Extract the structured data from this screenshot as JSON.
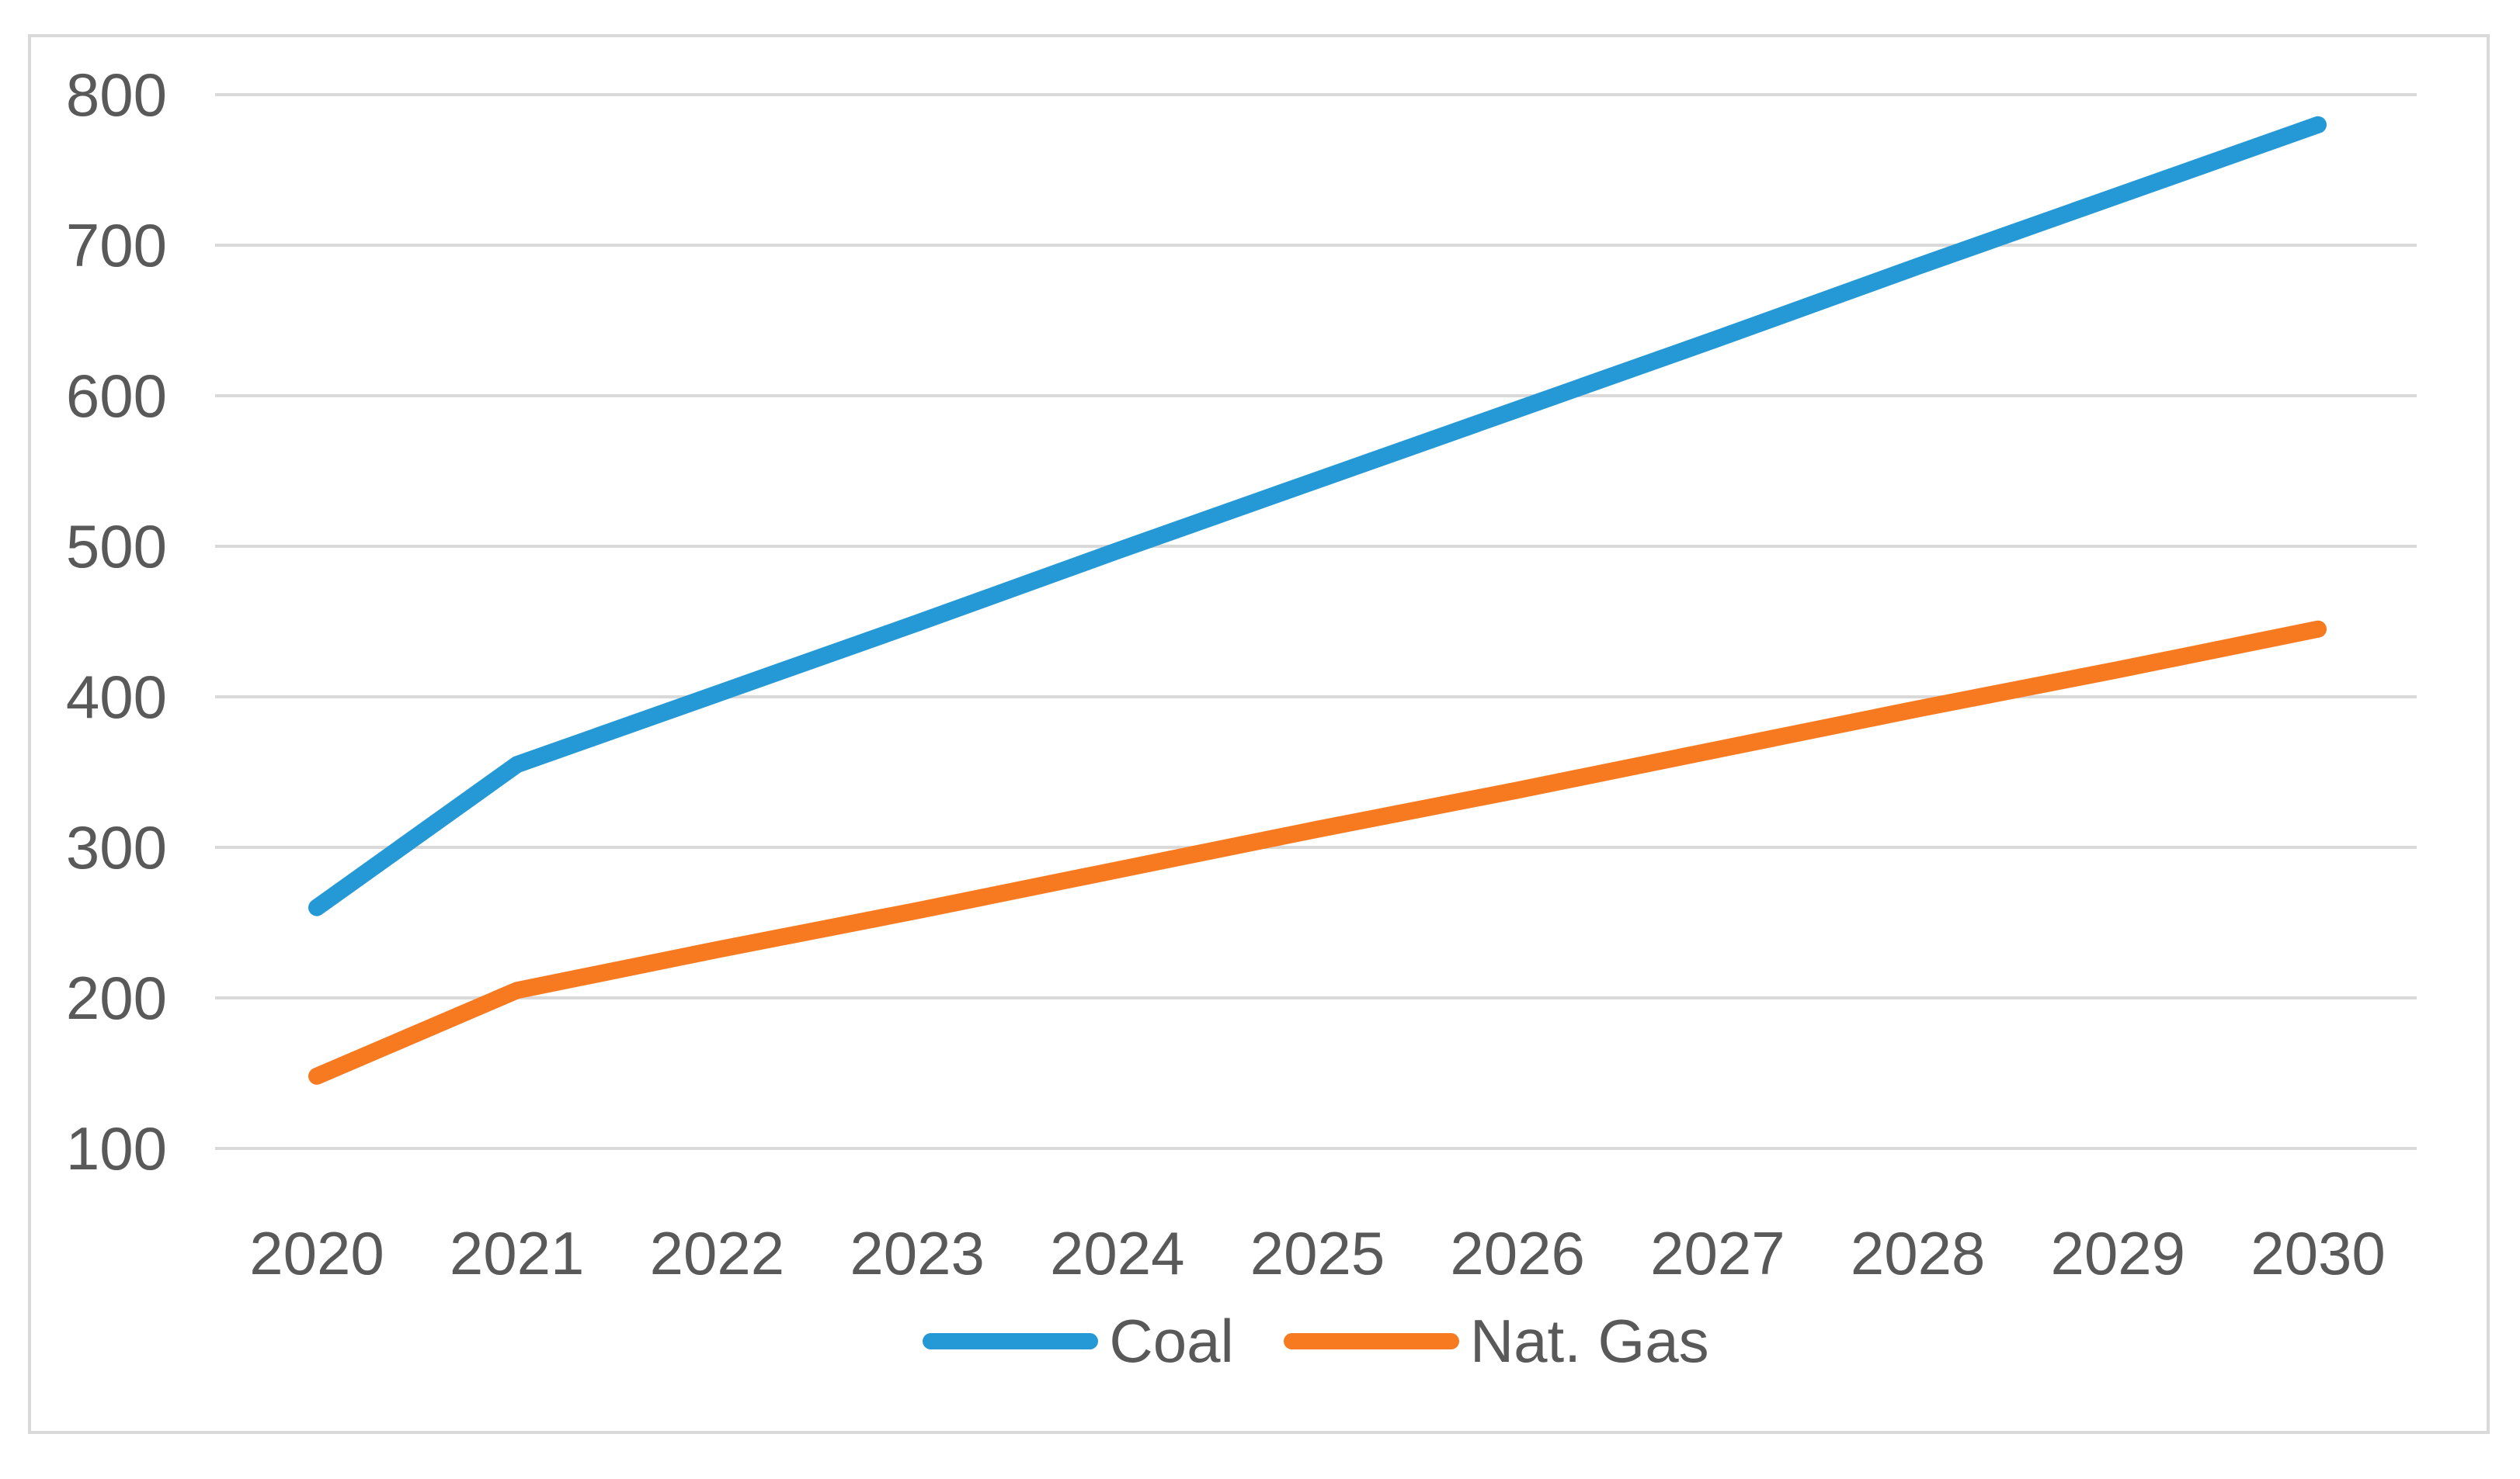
{
  "style": {
    "background": "#FFFFFF",
    "border_color": "#D9D9D9",
    "grid_color": "#D9D9D9",
    "text_color": "#595959"
  },
  "chart_data": {
    "type": "line",
    "title": "",
    "xlabel": "",
    "ylabel": "",
    "categories": [
      "2020",
      "2021",
      "2022",
      "2023",
      "2024",
      "2025",
      "2026",
      "2027",
      "2028",
      "2029",
      "2030"
    ],
    "series": [
      {
        "name": "Coal",
        "color": "#2499D6",
        "values": [
          260,
          355,
          402,
          449,
          497,
          544,
          591,
          638,
          686,
          733,
          780
        ]
      },
      {
        "name": "Nat. Gas",
        "color": "#F87A20",
        "values": [
          148,
          205,
          232,
          258,
          285,
          312,
          338,
          365,
          392,
          418,
          445
        ]
      }
    ],
    "yticks": [
      100,
      200,
      300,
      400,
      500,
      600,
      700,
      800
    ],
    "ylim": [
      100,
      800
    ],
    "ytick_step": 100,
    "grid": "horizontal",
    "legend_position": "bottom"
  }
}
